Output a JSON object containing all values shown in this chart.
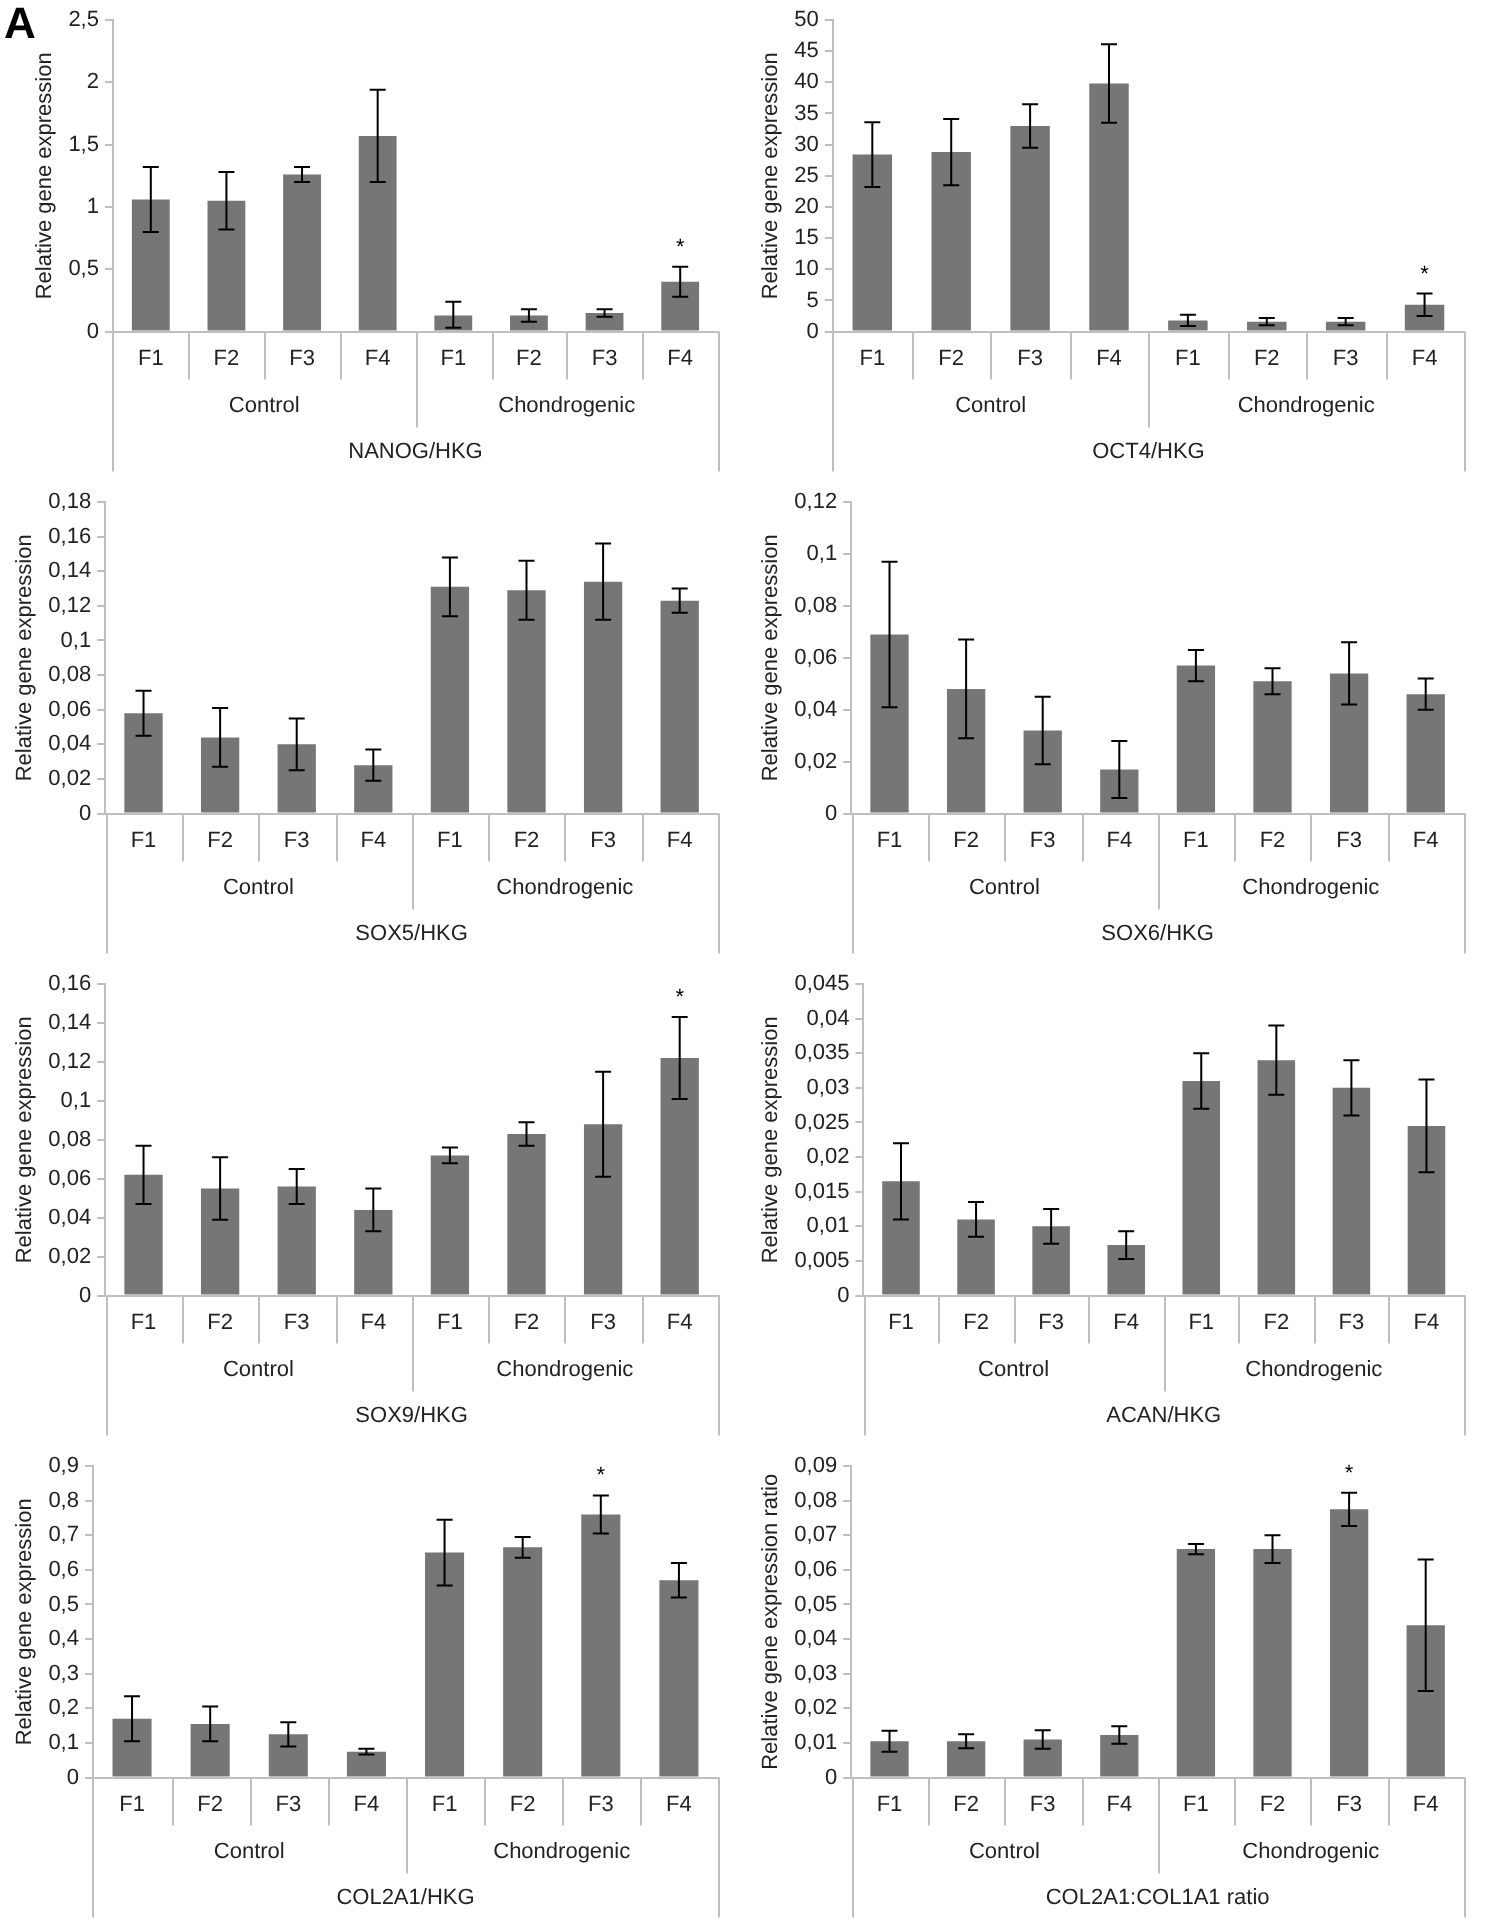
{
  "chart_data": [
    {
      "type": "bar",
      "ylabel": "Relative gene expression",
      "xlabel": "NANOG/HKG",
      "categories": [
        "F1",
        "F2",
        "F3",
        "F4",
        "F1",
        "F2",
        "F3",
        "F4"
      ],
      "color": "#767676",
      "values": [
        1.06,
        1.05,
        1.26,
        1.57,
        0.13,
        0.13,
        0.15,
        0.4
      ],
      "errors": [
        0.26,
        0.23,
        0.06,
        0.37,
        [
          0.03,
          0.24
        ],
        0.05,
        0.03,
        0.12
      ],
      "value_labels": [
        null,
        null,
        null,
        null,
        null,
        null,
        null,
        "*"
      ],
      "ylim": [
        0,
        2.5
      ],
      "yticks": [
        0,
        {
          "value": 0.5,
          "label": "0,5"
        },
        1,
        {
          "value": 1.5,
          "label": "1,5"
        },
        2,
        {
          "value": 2.5,
          "label": "2,5"
        }
      ],
      "annotations": [
        "Control",
        "Chondrogenic",
        "A"
      ],
      "grid": false,
      "legend": false
    },
    {
      "type": "bar",
      "ylabel": "Relative gene expression",
      "xlabel": "OCT4/HKG",
      "categories": [
        "F1",
        "F2",
        "F3",
        "F4",
        "F1",
        "F2",
        "F3",
        "F4"
      ],
      "color": "#767676",
      "values": [
        28.4,
        28.8,
        33,
        39.8,
        1.8,
        1.6,
        1.6,
        4.3
      ],
      "errors": [
        5.2,
        5.3,
        3.5,
        6.3,
        0.9,
        0.6,
        0.6,
        1.8
      ],
      "value_labels": [
        null,
        null,
        null,
        null,
        null,
        null,
        null,
        "*"
      ],
      "ylim": [
        0,
        50
      ],
      "yticks": [
        0,
        5,
        10,
        15,
        20,
        25,
        30,
        35,
        40,
        45,
        50
      ],
      "annotations": [
        "Control",
        "Chondrogenic"
      ],
      "grid": false,
      "legend": false
    },
    {
      "type": "bar",
      "ylabel": "Relative gene expression",
      "xlabel": "SOX5/HKG",
      "categories": [
        "F1",
        "F2",
        "F3",
        "F4",
        "F1",
        "F2",
        "F3",
        "F4"
      ],
      "color": "#767676",
      "values": [
        0.058,
        0.044,
        0.04,
        0.028,
        0.131,
        0.129,
        0.134,
        0.123
      ],
      "errors": [
        0.013,
        0.017,
        0.015,
        0.009,
        0.017,
        0.017,
        0.022,
        0.007
      ],
      "ylim": [
        0,
        0.18
      ],
      "yticks": [
        0,
        {
          "value": 0.02,
          "label": "0,02"
        },
        {
          "value": 0.04,
          "label": "0,04"
        },
        {
          "value": 0.06,
          "label": "0,06"
        },
        {
          "value": 0.08,
          "label": "0,08"
        },
        {
          "value": 0.1,
          "label": "0,1"
        },
        {
          "value": 0.12,
          "label": "0,12"
        },
        {
          "value": 0.14,
          "label": "0,14"
        },
        {
          "value": 0.16,
          "label": "0,16"
        },
        {
          "value": 0.18,
          "label": "0,18"
        }
      ],
      "annotations": [
        "Control",
        "Chondrogenic"
      ],
      "grid": false,
      "legend": false
    },
    {
      "type": "bar",
      "ylabel": "Relative gene expression",
      "xlabel": "SOX6/HKG",
      "categories": [
        "F1",
        "F2",
        "F3",
        "F4",
        "F1",
        "F2",
        "F3",
        "F4"
      ],
      "color": "#767676",
      "values": [
        0.069,
        0.048,
        0.032,
        0.017,
        0.057,
        0.051,
        0.054,
        0.046
      ],
      "errors": [
        0.028,
        0.019,
        0.013,
        0.011,
        0.006,
        0.005,
        0.012,
        0.006
      ],
      "ylim": [
        0,
        0.12
      ],
      "yticks": [
        0,
        {
          "value": 0.02,
          "label": "0,02"
        },
        {
          "value": 0.04,
          "label": "0,04"
        },
        {
          "value": 0.06,
          "label": "0,06"
        },
        {
          "value": 0.08,
          "label": "0,08"
        },
        {
          "value": 0.1,
          "label": "0,1"
        },
        {
          "value": 0.12,
          "label": "0,12"
        }
      ],
      "annotations": [
        "Control",
        "Chondrogenic"
      ],
      "grid": false,
      "legend": false
    },
    {
      "type": "bar",
      "ylabel": "Relative gene expression",
      "xlabel": "SOX9/HKG",
      "categories": [
        "F1",
        "F2",
        "F3",
        "F4",
        "F1",
        "F2",
        "F3",
        "F4"
      ],
      "color": "#767676",
      "values": [
        0.062,
        0.055,
        0.056,
        0.044,
        0.072,
        0.083,
        0.088,
        0.122
      ],
      "errors": [
        0.015,
        0.016,
        0.009,
        0.011,
        0.004,
        0.006,
        0.027,
        0.021
      ],
      "value_labels": [
        null,
        null,
        null,
        null,
        null,
        null,
        null,
        "*"
      ],
      "ylim": [
        0,
        0.16
      ],
      "yticks": [
        0,
        {
          "value": 0.02,
          "label": "0,02"
        },
        {
          "value": 0.04,
          "label": "0,04"
        },
        {
          "value": 0.06,
          "label": "0,06"
        },
        {
          "value": 0.08,
          "label": "0,08"
        },
        {
          "value": 0.1,
          "label": "0,1"
        },
        {
          "value": 0.12,
          "label": "0,12"
        },
        {
          "value": 0.14,
          "label": "0,14"
        },
        {
          "value": 0.16,
          "label": "0,16"
        }
      ],
      "annotations": [
        "Control",
        "Chondrogenic"
      ],
      "grid": false,
      "legend": false
    },
    {
      "type": "bar",
      "ylabel": "Relative gene expression",
      "xlabel": "ACAN/HKG",
      "categories": [
        "F1",
        "F2",
        "F3",
        "F4",
        "F1",
        "F2",
        "F3",
        "F4"
      ],
      "color": "#767676",
      "values": [
        0.0165,
        0.011,
        0.01,
        0.0073,
        0.031,
        0.034,
        0.03,
        0.0245
      ],
      "errors": [
        0.0055,
        0.0025,
        0.0025,
        0.002,
        0.004,
        0.005,
        0.004,
        0.0067
      ],
      "ylim": [
        0,
        0.045
      ],
      "yticks": [
        0,
        {
          "value": 0.005,
          "label": "0,005"
        },
        {
          "value": 0.01,
          "label": "0,01"
        },
        {
          "value": 0.015,
          "label": "0,015"
        },
        {
          "value": 0.02,
          "label": "0,02"
        },
        {
          "value": 0.025,
          "label": "0,025"
        },
        {
          "value": 0.03,
          "label": "0,03"
        },
        {
          "value": 0.035,
          "label": "0,035"
        },
        {
          "value": 0.04,
          "label": "0,04"
        },
        {
          "value": 0.045,
          "label": "0,045"
        }
      ],
      "annotations": [
        "Control",
        "Chondrogenic"
      ],
      "grid": false,
      "legend": false
    },
    {
      "type": "bar",
      "ylabel": "Relative gene expression",
      "xlabel": "COL2A1/HKG",
      "categories": [
        "F1",
        "F2",
        "F3",
        "F4",
        "F1",
        "F2",
        "F3",
        "F4"
      ],
      "color": "#767676",
      "values": [
        0.17,
        0.155,
        0.125,
        0.075,
        0.65,
        0.665,
        0.76,
        0.57
      ],
      "errors": [
        0.065,
        0.05,
        0.035,
        0.008,
        0.095,
        0.03,
        0.055,
        0.05
      ],
      "value_labels": [
        null,
        null,
        null,
        null,
        null,
        null,
        "*",
        null
      ],
      "ylim": [
        0,
        0.9
      ],
      "yticks": [
        0,
        {
          "value": 0.1,
          "label": "0,1"
        },
        {
          "value": 0.2,
          "label": "0,2"
        },
        {
          "value": 0.3,
          "label": "0,3"
        },
        {
          "value": 0.4,
          "label": "0,4"
        },
        {
          "value": 0.5,
          "label": "0,5"
        },
        {
          "value": 0.6,
          "label": "0,6"
        },
        {
          "value": 0.7,
          "label": "0,7"
        },
        {
          "value": 0.8,
          "label": "0,8"
        },
        {
          "value": 0.9,
          "label": "0,9"
        }
      ],
      "annotations": [
        "Control",
        "Chondrogenic"
      ],
      "grid": false,
      "legend": false
    },
    {
      "type": "bar",
      "ylabel": "Relative gene expression ratio",
      "xlabel": "COL2A1:COL1A1 ratio",
      "categories": [
        "F1",
        "F2",
        "F3",
        "F4",
        "F1",
        "F2",
        "F3",
        "F4"
      ],
      "color": "#767676",
      "values": [
        0.0105,
        0.0105,
        0.011,
        0.0123,
        0.066,
        0.066,
        0.0775,
        0.044
      ],
      "errors": [
        0.003,
        0.002,
        0.0027,
        0.0025,
        0.0015,
        0.004,
        0.0048,
        0.019
      ],
      "value_labels": [
        null,
        null,
        null,
        null,
        null,
        null,
        "*",
        null
      ],
      "ylim": [
        0,
        0.09
      ],
      "yticks": [
        0,
        {
          "value": 0.01,
          "label": "0,01"
        },
        {
          "value": 0.02,
          "label": "0,02"
        },
        {
          "value": 0.03,
          "label": "0,03"
        },
        {
          "value": 0.04,
          "label": "0,04"
        },
        {
          "value": 0.05,
          "label": "0,05"
        },
        {
          "value": 0.06,
          "label": "0,06"
        },
        {
          "value": 0.07,
          "label": "0,07"
        },
        {
          "value": 0.08,
          "label": "0,08"
        },
        {
          "value": 0.09,
          "label": "0,09"
        }
      ],
      "annotations": [
        "Control",
        "Chondrogenic"
      ],
      "grid": false,
      "legend": false
    }
  ]
}
